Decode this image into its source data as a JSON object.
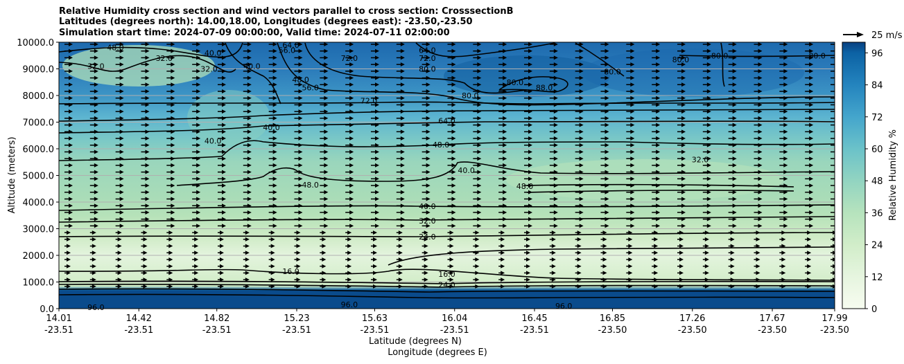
{
  "chart_data": {
    "type": "heatmap",
    "title_lines": [
      "Relative Humidity cross section and wind vectors parallel to cross section: CrosssectionB",
      "Latitudes (degrees north): 14.00,18.00, Longitudes (degrees east): -23.50,-23.50",
      "Simulation start time: 2024-07-09 00:00:00, Valid time: 2024-07-11 02:00:00"
    ],
    "ylabel": "Altitude (meters)",
    "xlabel_lat": "Latitude (degrees N)",
    "xlabel_lon": "Longitude (degrees E)",
    "ylim": [
      0,
      10000
    ],
    "y_ticks": [
      "0.0",
      "1000.0",
      "2000.0",
      "3000.0",
      "4000.0",
      "5000.0",
      "6000.0",
      "7000.0",
      "8000.0",
      "9000.0",
      "10000.0"
    ],
    "x_ticks": [
      {
        "lat": "14.01",
        "lon": "-23.51"
      },
      {
        "lat": "14.42",
        "lon": "-23.51"
      },
      {
        "lat": "14.82",
        "lon": "-23.51"
      },
      {
        "lat": "15.23",
        "lon": "-23.51"
      },
      {
        "lat": "15.63",
        "lon": "-23.51"
      },
      {
        "lat": "16.04",
        "lon": "-23.51"
      },
      {
        "lat": "16.45",
        "lon": "-23.51"
      },
      {
        "lat": "16.85",
        "lon": "-23.50"
      },
      {
        "lat": "17.26",
        "lon": "-23.50"
      },
      {
        "lat": "17.67",
        "lon": "-23.50"
      },
      {
        "lat": "17.99",
        "lon": "-23.50"
      }
    ],
    "grid": "horizontal",
    "colorbar": {
      "label": "Relative Humidity %",
      "ticks": [
        "0",
        "12",
        "24",
        "36",
        "48",
        "60",
        "72",
        "84",
        "96"
      ],
      "range": [
        0,
        100
      ]
    },
    "quiver_key": "25 m/s",
    "contour_labels": [
      {
        "text": "96.0",
        "lat": 14.2,
        "alt": 50
      },
      {
        "text": "96.0",
        "lat": 15.5,
        "alt": 150
      },
      {
        "text": "96.0",
        "lat": 16.6,
        "alt": 100
      },
      {
        "text": "16.0",
        "lat": 15.2,
        "alt": 1400
      },
      {
        "text": "16.0",
        "lat": 16.0,
        "alt": 1300
      },
      {
        "text": "24.0",
        "lat": 16.0,
        "alt": 900
      },
      {
        "text": "24.0",
        "lat": 15.9,
        "alt": 2700
      },
      {
        "text": "32.0",
        "lat": 15.9,
        "alt": 3300
      },
      {
        "text": "40.0",
        "lat": 15.9,
        "alt": 3850
      },
      {
        "text": "48.0",
        "lat": 15.3,
        "alt": 4650
      },
      {
        "text": "48.0",
        "lat": 16.4,
        "alt": 4600
      },
      {
        "text": "40.0",
        "lat": 16.1,
        "alt": 5200
      },
      {
        "text": "48.0",
        "lat": 15.97,
        "alt": 6150
      },
      {
        "text": "32.0",
        "lat": 17.3,
        "alt": 5600
      },
      {
        "text": "40.0",
        "lat": 15.1,
        "alt": 6800
      },
      {
        "text": "40.0",
        "lat": 14.8,
        "alt": 6300
      },
      {
        "text": "64.0",
        "lat": 16.0,
        "alt": 7050
      },
      {
        "text": "72.0",
        "lat": 15.6,
        "alt": 7800
      },
      {
        "text": "80.0",
        "lat": 16.12,
        "alt": 8000
      },
      {
        "text": "80.0",
        "lat": 16.35,
        "alt": 8500
      },
      {
        "text": "88.0",
        "lat": 16.5,
        "alt": 8300
      },
      {
        "text": "80.0",
        "lat": 15.9,
        "alt": 9000
      },
      {
        "text": "72.0",
        "lat": 15.9,
        "alt": 9400
      },
      {
        "text": "64.0",
        "lat": 15.9,
        "alt": 9700
      },
      {
        "text": "48.0",
        "lat": 14.3,
        "alt": 9800
      },
      {
        "text": "40.0",
        "lat": 14.8,
        "alt": 9600
      },
      {
        "text": "32.0",
        "lat": 14.2,
        "alt": 9100
      },
      {
        "text": "32.0",
        "lat": 14.55,
        "alt": 9400
      },
      {
        "text": "32.0",
        "lat": 14.78,
        "alt": 9000
      },
      {
        "text": "40.0",
        "lat": 15.0,
        "alt": 9100
      },
      {
        "text": "48.0",
        "lat": 15.25,
        "alt": 8600
      },
      {
        "text": "56.0",
        "lat": 15.3,
        "alt": 8300
      },
      {
        "text": "56.0",
        "lat": 15.18,
        "alt": 9700
      },
      {
        "text": "64.0",
        "lat": 15.2,
        "alt": 9900
      },
      {
        "text": "72.0",
        "lat": 15.5,
        "alt": 9400
      },
      {
        "text": "80.0",
        "lat": 16.85,
        "alt": 8900
      },
      {
        "text": "80.0",
        "lat": 17.2,
        "alt": 9350
      },
      {
        "text": "80.0",
        "lat": 17.4,
        "alt": 9500
      },
      {
        "text": "80.0",
        "lat": 17.9,
        "alt": 9500
      }
    ]
  }
}
